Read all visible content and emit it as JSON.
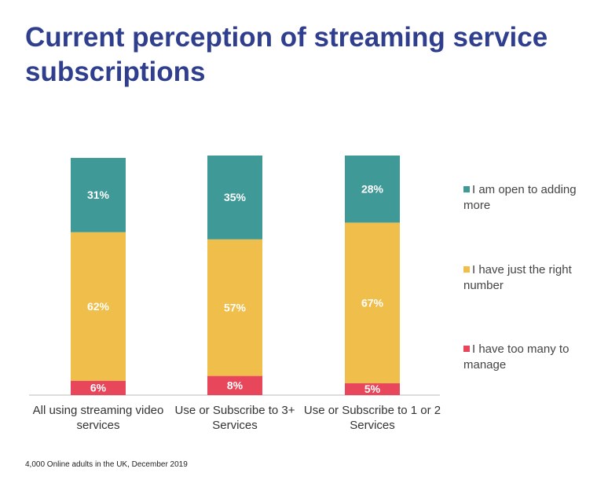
{
  "chart_data": {
    "type": "stacked_bar",
    "title": "Current perception of streaming service subscriptions",
    "note": "4,000 Online adults in the UK, December 2019",
    "categories": [
      "All using streaming video services",
      "Use or Subscribe to 3+ Services",
      "Use or Subscribe to 1 or 2 Services"
    ],
    "series": [
      {
        "name": "I have too many to manage",
        "color": "#e8475b",
        "values": [
          6,
          8,
          5
        ],
        "value_labels": [
          "6%",
          "8%",
          "5%"
        ]
      },
      {
        "name": "I have just the right number",
        "color": "#f0be4a",
        "values": [
          62,
          57,
          67
        ],
        "value_labels": [
          "62%",
          "57%",
          "67%"
        ]
      },
      {
        "name": "I am open to adding more",
        "color": "#3f9997",
        "values": [
          31,
          35,
          28
        ],
        "value_labels": [
          "31%",
          "35%",
          "28%"
        ]
      }
    ]
  }
}
